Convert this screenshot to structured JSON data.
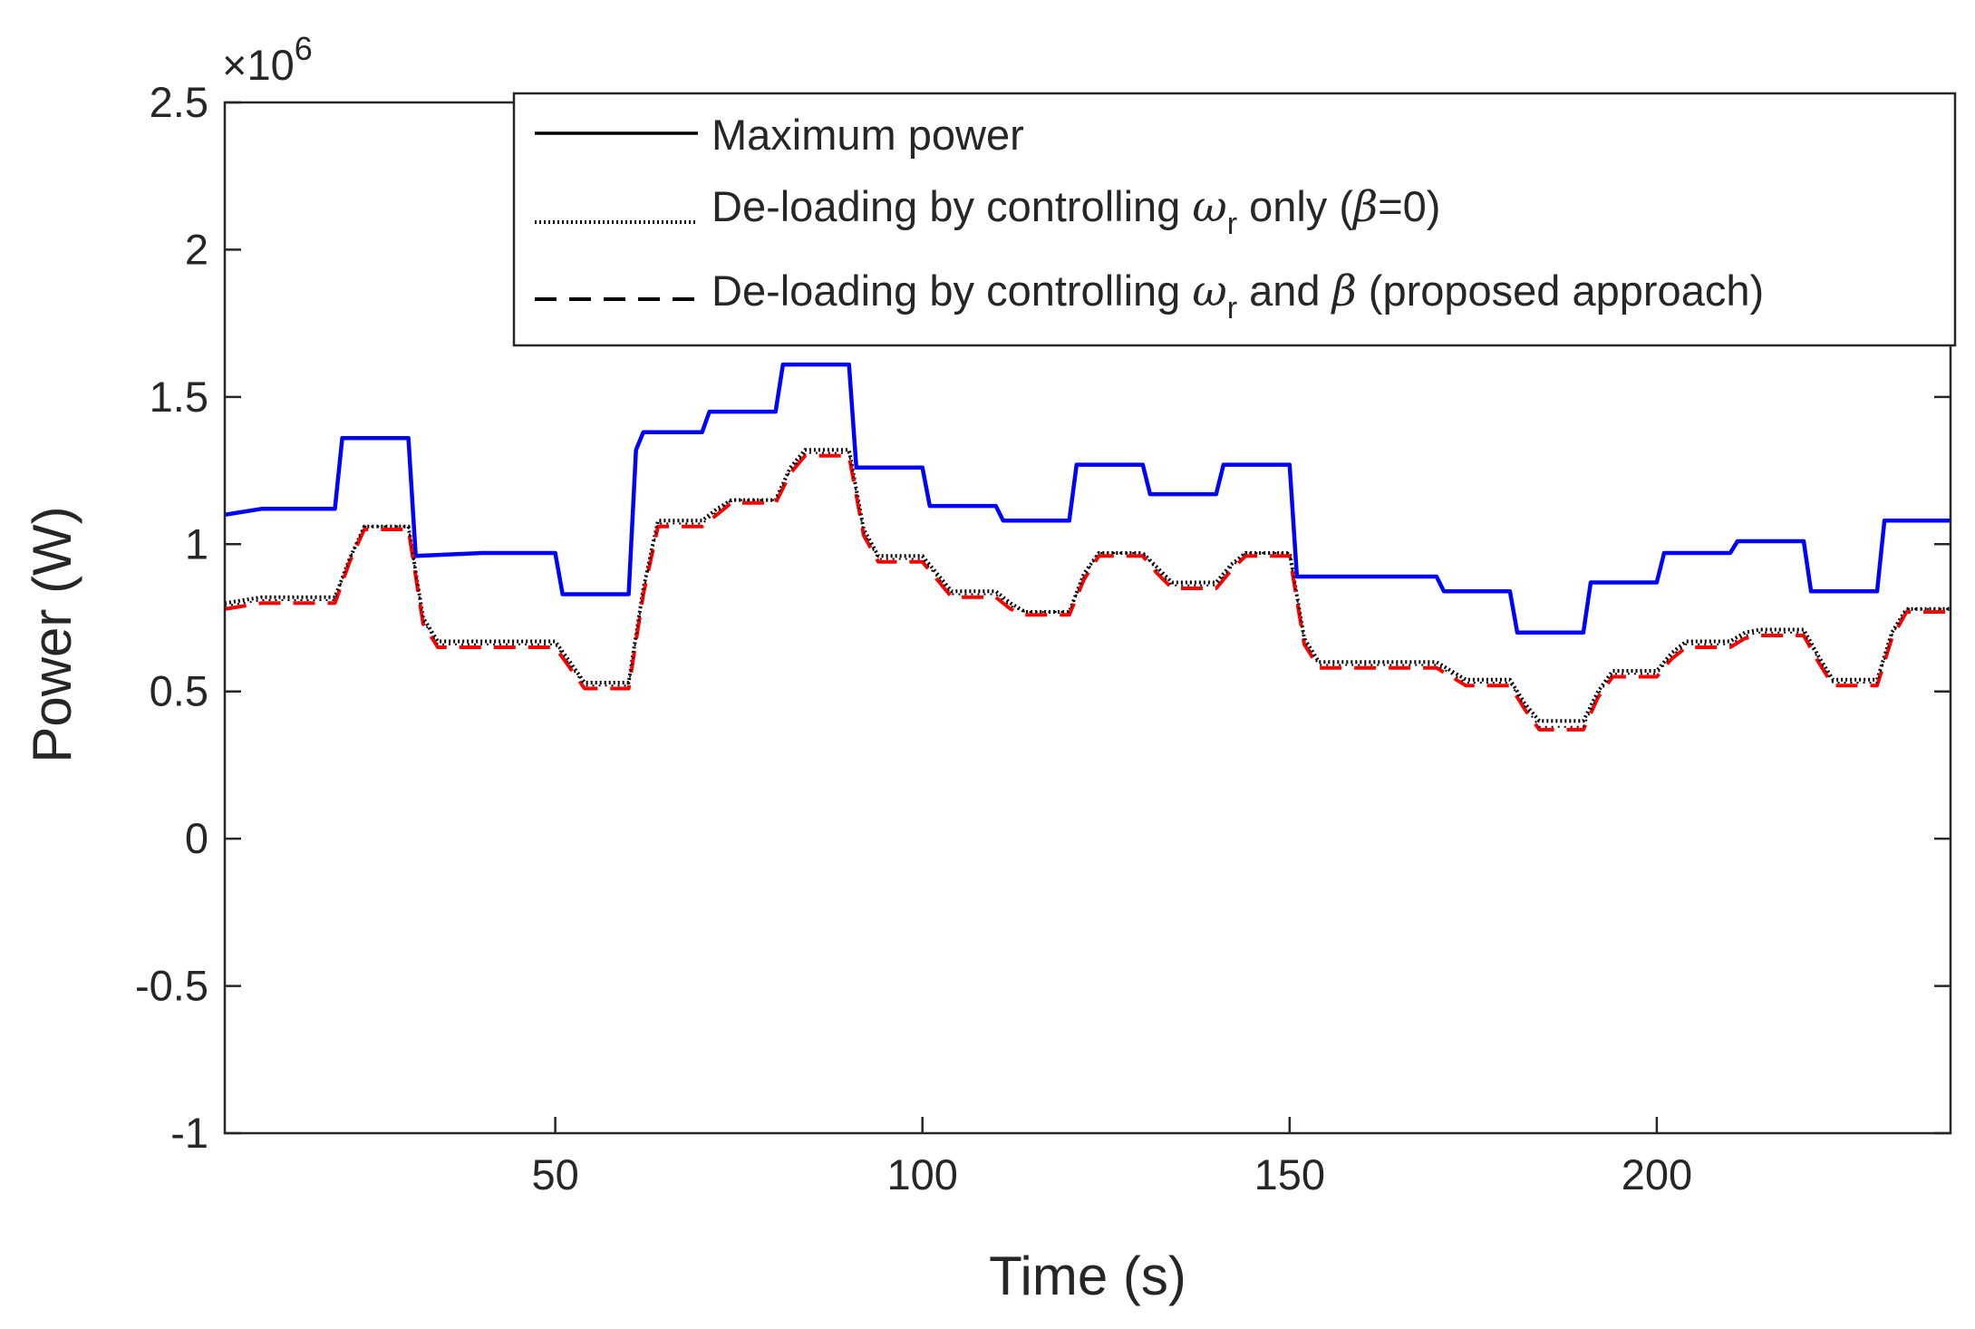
{
  "chart_data": {
    "type": "line",
    "title": "",
    "xlabel": "Time (s)",
    "ylabel": "Power (W)",
    "xlim": [
      5,
      240
    ],
    "ylim": [
      -1,
      2.5
    ],
    "x_ticks": [
      50,
      100,
      150,
      200
    ],
    "x_tick_labels": [
      "50",
      "100",
      "150",
      "200"
    ],
    "y_ticks": [
      -1,
      -0.5,
      0,
      0.5,
      1,
      1.5,
      2,
      2.5
    ],
    "y_tick_labels": [
      "-1",
      "-0.5",
      "0",
      "0.5",
      "1",
      "1.5",
      "2",
      "2.5"
    ],
    "y_exponent": "×10",
    "y_exponent_power": "6",
    "y_scale": 1000000,
    "legend_position": "top-right",
    "legend": [
      {
        "label": "Maximum power",
        "style": "solid"
      },
      {
        "label_pre": "De-loading by controlling ",
        "sym1": "ω",
        "sub1": "r",
        "label_mid": " only (",
        "sym2": "β",
        "label_post": "=0)",
        "style": "dotted"
      },
      {
        "label_pre": "De-loading by controlling ",
        "sym1": "ω",
        "sub1": "r",
        "label_mid": " and ",
        "sym2": "β",
        "label_post": " (proposed approach)",
        "style": "dashed"
      }
    ],
    "series": [
      {
        "name": "Maximum power",
        "color": "#0000ff",
        "style": "solid",
        "x": [
          5,
          10,
          20,
          21,
          30,
          31,
          40,
          50,
          51,
          60,
          61,
          62,
          70,
          71,
          80,
          81,
          90,
          91,
          100,
          101,
          110,
          111,
          120,
          121,
          130,
          131,
          140,
          141,
          150,
          151,
          170,
          171,
          180,
          181,
          190,
          191,
          200,
          201,
          210,
          211,
          220,
          221,
          230,
          231,
          240
        ],
        "y": [
          1.1,
          1.12,
          1.12,
          1.36,
          1.36,
          0.96,
          0.97,
          0.97,
          0.83,
          0.83,
          1.32,
          1.38,
          1.38,
          1.45,
          1.45,
          1.61,
          1.61,
          1.26,
          1.26,
          1.13,
          1.13,
          1.08,
          1.08,
          1.27,
          1.27,
          1.17,
          1.17,
          1.27,
          1.27,
          0.89,
          0.89,
          0.84,
          0.84,
          0.7,
          0.7,
          0.87,
          0.87,
          0.97,
          0.97,
          1.01,
          1.01,
          0.84,
          0.84,
          1.08,
          1.08
        ]
      },
      {
        "name": "De-loading by controlling ωr only (β=0)",
        "color": "#000000",
        "style": "dotted",
        "x": [
          5,
          10,
          20,
          22,
          24,
          30,
          32,
          34,
          40,
          50,
          52,
          54,
          60,
          62,
          64,
          70,
          72,
          74,
          80,
          82,
          84,
          90,
          92,
          94,
          100,
          102,
          104,
          110,
          112,
          114,
          120,
          122,
          124,
          130,
          132,
          134,
          140,
          142,
          144,
          150,
          152,
          154,
          170,
          172,
          174,
          180,
          182,
          184,
          190,
          192,
          194,
          200,
          202,
          204,
          210,
          212,
          214,
          220,
          222,
          224,
          230,
          232,
          234,
          240
        ],
        "y": [
          0.8,
          0.82,
          0.82,
          0.95,
          1.06,
          1.06,
          0.75,
          0.67,
          0.67,
          0.67,
          0.6,
          0.53,
          0.53,
          0.85,
          1.08,
          1.08,
          1.12,
          1.15,
          1.15,
          1.26,
          1.32,
          1.32,
          1.05,
          0.96,
          0.96,
          0.9,
          0.84,
          0.84,
          0.8,
          0.77,
          0.77,
          0.9,
          0.97,
          0.97,
          0.92,
          0.87,
          0.87,
          0.93,
          0.97,
          0.97,
          0.68,
          0.6,
          0.6,
          0.57,
          0.54,
          0.54,
          0.46,
          0.4,
          0.4,
          0.5,
          0.57,
          0.57,
          0.63,
          0.67,
          0.67,
          0.7,
          0.71,
          0.71,
          0.62,
          0.54,
          0.54,
          0.7,
          0.78,
          0.78
        ]
      },
      {
        "name": "De-loading by controlling ωr and β (proposed approach)",
        "color": "#ff0000",
        "style": "dashed",
        "x": [
          5,
          10,
          20,
          22,
          24,
          30,
          32,
          34,
          40,
          50,
          52,
          54,
          60,
          62,
          64,
          70,
          72,
          74,
          80,
          82,
          84,
          90,
          92,
          94,
          100,
          102,
          104,
          110,
          112,
          114,
          120,
          122,
          124,
          130,
          132,
          134,
          140,
          142,
          144,
          150,
          152,
          154,
          170,
          172,
          174,
          180,
          182,
          184,
          190,
          192,
          194,
          200,
          202,
          204,
          210,
          212,
          214,
          220,
          222,
          224,
          230,
          232,
          234,
          240
        ],
        "y": [
          0.78,
          0.8,
          0.8,
          0.94,
          1.05,
          1.05,
          0.73,
          0.65,
          0.65,
          0.65,
          0.58,
          0.51,
          0.51,
          0.83,
          1.06,
          1.06,
          1.1,
          1.14,
          1.14,
          1.24,
          1.3,
          1.3,
          1.03,
          0.94,
          0.94,
          0.88,
          0.82,
          0.82,
          0.78,
          0.76,
          0.76,
          0.88,
          0.96,
          0.96,
          0.9,
          0.85,
          0.85,
          0.91,
          0.96,
          0.96,
          0.66,
          0.58,
          0.58,
          0.55,
          0.52,
          0.52,
          0.44,
          0.37,
          0.37,
          0.48,
          0.55,
          0.55,
          0.61,
          0.65,
          0.65,
          0.68,
          0.69,
          0.69,
          0.6,
          0.52,
          0.52,
          0.68,
          0.77,
          0.77
        ]
      }
    ]
  }
}
